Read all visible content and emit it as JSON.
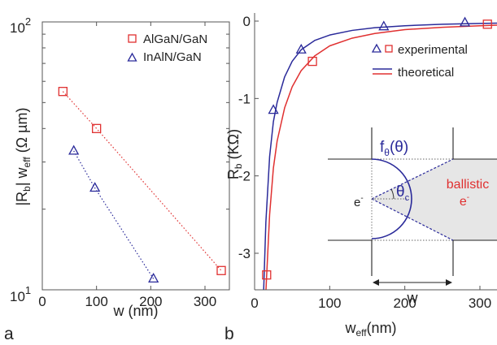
{
  "colors": {
    "red": "#e03030",
    "blue": "#2a2a9a",
    "shade": "#e6e6e6"
  },
  "chart_data": [
    {
      "type": "scatter",
      "panel_label": "a",
      "xlabel": "w (nm)",
      "ylabel_main": "|R",
      "ylabel_sub1": "b",
      "ylabel_mid": "| w",
      "ylabel_sub2": "eff",
      "ylabel_unit": " (Ω µm)",
      "xlim": [
        0,
        345
      ],
      "xticks": [
        0,
        100,
        200,
        300
      ],
      "xtick_labels": [
        "0",
        "100",
        "200",
        "300"
      ],
      "ylim": [
        10,
        100
      ],
      "yscale": "log",
      "ytick_base": "10",
      "ytick_exponents": [
        "2",
        "1"
      ],
      "grid": false,
      "legend_position": "top-right",
      "series": [
        {
          "name": "AlGaN/GaN",
          "marker": "square",
          "x": [
            38,
            100,
            330
          ],
          "y": [
            55,
            40,
            11.8
          ],
          "fit": "dotted"
        },
        {
          "name": "InAlN/GaN",
          "marker": "triangle",
          "x": [
            58,
            97,
            205
          ],
          "y": [
            33,
            24,
            11
          ]
        }
      ]
    },
    {
      "type": "line",
      "panel_label": "b",
      "xlabel_main": "w",
      "xlabel_sub": "eff",
      "xlabel_unit": "(nm)",
      "ylabel_main": "R",
      "ylabel_sub": "b",
      "ylabel_unit": " (KΩ)",
      "xlim": [
        0,
        330
      ],
      "xticks": [
        0,
        100,
        200,
        300
      ],
      "xtick_labels": [
        "0",
        "100",
        "200",
        "300"
      ],
      "ylim": [
        -3.5,
        0.1
      ],
      "yticks": [
        0,
        -1,
        -2,
        -3
      ],
      "ytick_labels": [
        "0",
        "-1",
        "-2",
        "-3"
      ],
      "grid": false,
      "legend_position": "top-right",
      "legend": [
        "experimental",
        "theoretical"
      ],
      "experimental": [
        {
          "marker": "triangle",
          "color": "blue",
          "x": [
            25,
            62,
            172,
            280
          ],
          "y": [
            -1.15,
            -0.37,
            -0.07,
            -0.02
          ]
        },
        {
          "marker": "square",
          "color": "red",
          "x": [
            16,
            77,
            310
          ],
          "y": [
            -3.28,
            -0.52,
            -0.04
          ]
        }
      ],
      "theoretical": [
        {
          "color": "blue",
          "x": [
            12,
            15,
            20,
            25,
            30,
            40,
            50,
            62,
            80,
            100,
            130,
            160,
            200,
            250,
            300,
            330
          ],
          "y": [
            -3.5,
            -2.6,
            -1.75,
            -1.3,
            -1.05,
            -0.72,
            -0.52,
            -0.37,
            -0.25,
            -0.18,
            -0.12,
            -0.085,
            -0.06,
            -0.04,
            -0.03,
            -0.025
          ]
        },
        {
          "color": "red",
          "x": [
            15,
            20,
            25,
            30,
            40,
            50,
            62,
            80,
            100,
            130,
            160,
            200,
            250,
            300,
            330
          ],
          "y": [
            -3.5,
            -2.5,
            -1.9,
            -1.55,
            -1.12,
            -0.85,
            -0.64,
            -0.45,
            -0.32,
            -0.22,
            -0.16,
            -0.11,
            -0.08,
            -0.06,
            -0.05
          ]
        }
      ],
      "inset": {
        "f_main": "f",
        "f_sub": "θ",
        "f_arg": "(θ)",
        "theta_main": "θ",
        "theta_sub": "c",
        "e_main": "e",
        "e_sup": "-",
        "ballistic_line1": "ballistic",
        "ballistic_line2_main": "e",
        "ballistic_line2_sup": "-",
        "w_label": "w"
      }
    }
  ]
}
